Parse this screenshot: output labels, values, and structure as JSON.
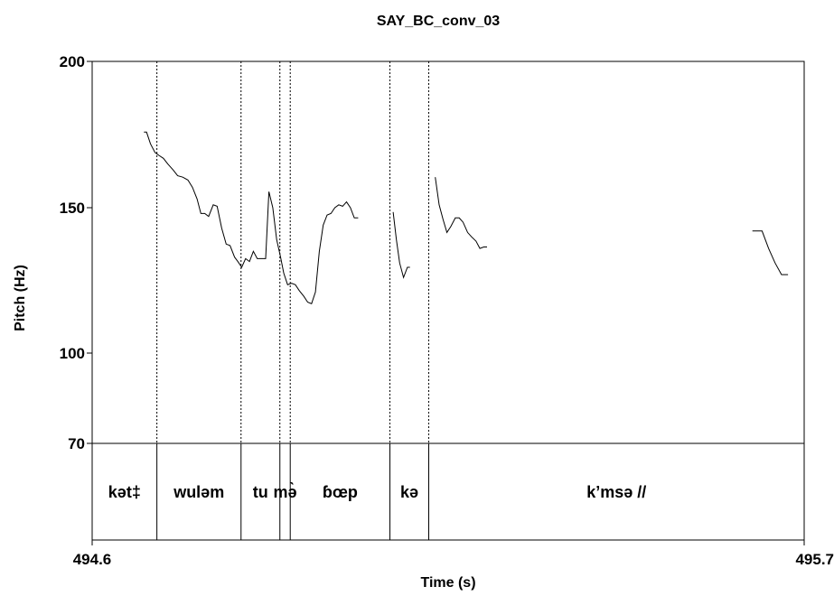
{
  "chart_data": {
    "type": "line",
    "title": "SAY_BC_conv_03",
    "xlabel": "Time (s)",
    "ylabel": "Pitch (Hz)",
    "xlim": [
      494.6,
      495.7
    ],
    "ylim": [
      70,
      200
    ],
    "x_ticks": [
      "494.6",
      "495.7"
    ],
    "y_ticks": [
      "70",
      "100",
      "150",
      "200"
    ],
    "tier_boundaries": [
      494.7,
      494.83,
      494.89,
      494.906,
      495.06,
      495.12
    ],
    "tier_labels": [
      {
        "text": "kət‡",
        "start": 494.6,
        "end": 494.7
      },
      {
        "text": "wuləm",
        "start": 494.7,
        "end": 494.83
      },
      {
        "text": "tu",
        "start": 494.83,
        "end": 494.89
      },
      {
        "text": "mə̀",
        "start": 494.89,
        "end": 494.906
      },
      {
        "text": "ɓœp",
        "start": 494.906,
        "end": 495.06
      },
      {
        "text": "kə",
        "start": 495.06,
        "end": 495.12
      },
      {
        "text": "k’msə //",
        "start": 495.12,
        "end": 495.7
      }
    ],
    "series": [
      {
        "values": [
          [
            [
              494.68,
              176
            ],
            [
              494.684,
              176
            ],
            [
              494.69,
              172
            ],
            [
              494.697,
              169
            ],
            [
              494.703,
              168
            ],
            [
              494.71,
              167
            ],
            [
              494.717,
              165
            ],
            [
              494.725,
              163
            ],
            [
              494.732,
              161
            ],
            [
              494.74,
              160.5
            ],
            [
              494.748,
              159.5
            ],
            [
              494.755,
              157
            ],
            [
              494.762,
              153
            ],
            [
              494.768,
              148
            ],
            [
              494.774,
              148
            ],
            [
              494.78,
              147
            ],
            [
              494.787,
              151
            ],
            [
              494.793,
              150.5
            ],
            [
              494.8,
              143
            ],
            [
              494.807,
              137.5
            ],
            [
              494.813,
              137
            ],
            [
              494.82,
              133
            ],
            [
              494.825,
              131.5
            ],
            [
              494.831,
              129.5
            ],
            [
              494.837,
              132.5
            ],
            [
              494.843,
              131.5
            ],
            [
              494.849,
              135
            ],
            [
              494.855,
              132.5
            ],
            [
              494.861,
              132.5
            ],
            [
              494.868,
              132.5
            ],
            [
              494.873,
              155.5
            ],
            [
              494.879,
              150
            ],
            [
              494.885,
              139
            ],
            [
              494.891,
              133
            ],
            [
              494.896,
              127.5
            ],
            [
              494.902,
              123.5
            ],
            [
              494.908,
              124
            ],
            [
              494.914,
              123.5
            ],
            [
              494.92,
              121.5
            ],
            [
              494.927,
              119.5
            ],
            [
              494.933,
              117.5
            ],
            [
              494.939,
              117
            ],
            [
              494.945,
              121
            ],
            [
              494.951,
              135
            ],
            [
              494.957,
              144
            ],
            [
              494.963,
              147.5
            ],
            [
              494.969,
              148
            ],
            [
              494.975,
              150
            ],
            [
              494.981,
              151
            ],
            [
              494.987,
              150.5
            ],
            [
              494.993,
              152
            ],
            [
              494.999,
              150
            ],
            [
              495.005,
              146.5
            ],
            [
              495.011,
              146.5
            ]
          ],
          [
            [
              495.065,
              148.5
            ],
            [
              495.07,
              139
            ],
            [
              495.075,
              131
            ],
            [
              495.081,
              126
            ],
            [
              495.087,
              129.5
            ],
            [
              495.091,
              129.5
            ]
          ],
          [
            [
              495.13,
              160.5
            ],
            [
              495.136,
              151
            ],
            [
              495.142,
              146
            ],
            [
              495.148,
              141.5
            ],
            [
              495.154,
              143.5
            ],
            [
              495.161,
              146.5
            ],
            [
              495.167,
              146.5
            ],
            [
              495.173,
              145
            ],
            [
              495.18,
              141.5
            ],
            [
              495.186,
              140
            ],
            [
              495.193,
              138.5
            ],
            [
              495.199,
              136
            ],
            [
              495.205,
              136.5
            ],
            [
              495.21,
              136.5
            ]
          ],
          [
            [
              495.62,
              142
            ],
            [
              495.635,
              142
            ],
            [
              495.645,
              136
            ],
            [
              495.655,
              131
            ],
            [
              495.665,
              127
            ],
            [
              495.675,
              127
            ]
          ]
        ]
      }
    ]
  }
}
